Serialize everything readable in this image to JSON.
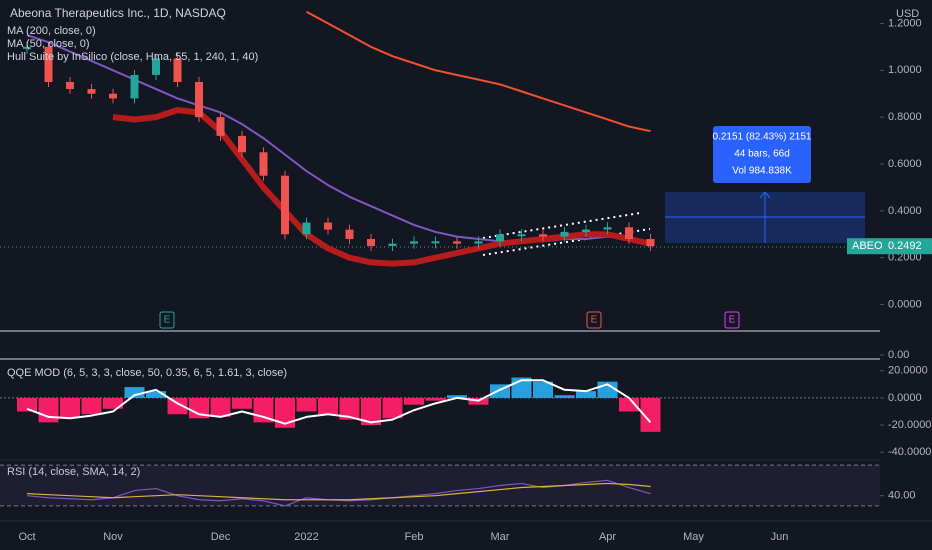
{
  "chart_data": [
    {
      "type": "candlestick",
      "title": "Abeona Therapeutics Inc., 1D, NASDAQ",
      "currency": "USD",
      "categories": [
        "Oct",
        null,
        null,
        null,
        "Nov",
        null,
        null,
        null,
        null,
        "Dec",
        null,
        null,
        null,
        "2022",
        null,
        null,
        null,
        null,
        "Feb",
        null,
        null,
        null,
        "Mar",
        null,
        null,
        null,
        null,
        "Apr",
        null,
        null,
        null,
        "May",
        null,
        null,
        null,
        "Jun",
        null,
        null,
        null,
        null
      ],
      "values": [
        1.1,
        0.95,
        0.92,
        0.9,
        0.88,
        0.98,
        1.05,
        0.95,
        0.8,
        0.72,
        0.65,
        0.55,
        0.3,
        0.35,
        0.32,
        0.28,
        0.25,
        0.26,
        0.27,
        0.27,
        0.26,
        0.27,
        0.3,
        0.3,
        0.29,
        0.31,
        0.32,
        0.33,
        0.28,
        0.2492,
        null,
        null,
        null,
        null,
        null,
        null,
        null,
        null,
        null,
        null
      ],
      "up_color": "#26a69a",
      "down_color": "#ef5350",
      "series": [
        {
          "name": "MA (200, close, 0)",
          "color": "#f0522e",
          "width": 2,
          "values": [
            null,
            null,
            null,
            null,
            null,
            null,
            null,
            null,
            null,
            null,
            null,
            null,
            null,
            1.25,
            1.2,
            1.15,
            1.1,
            1.06,
            1.03,
            1.0,
            0.98,
            0.96,
            0.94,
            0.91,
            0.88,
            0.85,
            0.82,
            0.79,
            0.76,
            0.74,
            null,
            null,
            null,
            null,
            null,
            null,
            null,
            null,
            null,
            null
          ]
        },
        {
          "name": "MA (50, close, 0)",
          "color": "#7e57c2",
          "width": 2,
          "values": [
            1.15,
            1.12,
            1.08,
            1.04,
            1.0,
            0.96,
            0.92,
            0.88,
            0.85,
            0.82,
            0.77,
            0.71,
            0.64,
            0.57,
            0.51,
            0.46,
            0.42,
            0.38,
            0.34,
            0.31,
            0.29,
            0.28,
            0.27,
            0.27,
            0.27,
            0.28,
            0.28,
            0.29,
            0.28,
            0.26,
            null,
            null,
            null,
            null,
            null,
            null,
            null,
            null,
            null,
            null
          ]
        },
        {
          "name": "Hull Suite by InSilico (close, Hma, 55, 1, 240, 1, 40)",
          "color": "#b71c1c",
          "width": 6,
          "values": [
            null,
            null,
            null,
            null,
            0.8,
            0.79,
            0.8,
            0.83,
            0.82,
            0.74,
            0.62,
            0.5,
            0.4,
            0.3,
            0.24,
            0.2,
            0.18,
            0.175,
            0.18,
            0.2,
            0.22,
            0.24,
            0.26,
            0.27,
            0.28,
            0.29,
            0.3,
            0.3,
            0.28,
            0.26,
            null,
            null,
            null,
            null,
            null,
            null,
            null,
            null,
            null,
            null
          ]
        }
      ],
      "last_label": "ABEO",
      "last_value": 0.2492,
      "ylim": [
        -0.1,
        1.3
      ],
      "yticks": [
        {
          "value": 1.2,
          "label": "1.2000"
        },
        {
          "value": 1.0,
          "label": "1.0000"
        },
        {
          "value": 0.8,
          "label": "0.8000"
        },
        {
          "value": 0.6,
          "label": "0.6000"
        },
        {
          "value": 0.4,
          "label": "0.4000"
        },
        {
          "value": 0.2,
          "label": "0.2000"
        },
        {
          "value": 0,
          "label": "0.0000"
        }
      ],
      "events": [
        "E",
        "E",
        "E"
      ],
      "tooltip": [
        "0.2151 (82.43%) 2151",
        "44 bars, 66d",
        "Vol 984.838K"
      ],
      "volume_tick": {
        "value": 0,
        "label": "0.00"
      }
    },
    {
      "type": "bar",
      "title": "QQE MOD (6, 5, 3, 3, close, 50, 0.35, 6, 5, 1.61, 3, close)",
      "values": [
        -10,
        -18,
        -15,
        -12,
        -8,
        8,
        5,
        -12,
        -15,
        -14,
        -8,
        -18,
        -22,
        -10,
        -12,
        -16,
        -20,
        -15,
        -5,
        -2,
        2,
        -5,
        10,
        15,
        12,
        2,
        5,
        12,
        -10,
        -25,
        null,
        null,
        null,
        null,
        null,
        null,
        null,
        null,
        null,
        null
      ],
      "trend": [
        -8,
        -14,
        -15,
        -13,
        -10,
        2,
        6,
        -4,
        -12,
        -14,
        -10,
        -14,
        -19,
        -14,
        -12,
        -14,
        -18,
        -16,
        -9,
        -4,
        0,
        -2,
        6,
        13,
        13,
        6,
        5,
        10,
        0,
        -18,
        null,
        null,
        null,
        null,
        null,
        null,
        null,
        null,
        null,
        null
      ],
      "pos_color": "#29a8e8",
      "neg_color": "#ff1f6a",
      "line_color": "#ffffff",
      "ylim": [
        -45,
        25
      ],
      "yticks": [
        {
          "value": 20,
          "label": "20.0000"
        },
        {
          "value": 0,
          "label": "0.0000"
        },
        {
          "value": -20,
          "label": "-20.0000"
        },
        {
          "value": -40,
          "label": "-40.0000"
        }
      ]
    },
    {
      "type": "line",
      "title": "RSI (14, close, SMA, 14, 2)",
      "values": [
        40,
        38,
        37,
        36,
        38,
        45,
        47,
        40,
        36,
        35,
        37,
        35,
        30,
        38,
        36,
        35,
        36,
        38,
        40,
        42,
        45,
        47,
        50,
        52,
        48,
        50,
        53,
        55,
        48,
        42,
        null,
        null,
        null,
        null,
        null,
        null,
        null,
        null,
        null,
        null
      ],
      "sma": [
        42,
        41,
        40,
        39,
        38,
        39,
        40,
        41,
        40,
        39,
        38,
        37,
        36,
        36,
        36,
        36,
        37,
        38,
        39,
        40,
        42,
        44,
        46,
        48,
        49,
        50,
        51,
        52,
        51,
        49,
        null,
        null,
        null,
        null,
        null,
        null,
        null,
        null,
        null,
        null
      ],
      "color": "#7e57c2",
      "sma_color": "#d8b43a",
      "levels": [
        30,
        70
      ],
      "ylim": [
        24,
        75
      ],
      "yticks": [
        {
          "value": 40,
          "label": "40.00"
        }
      ]
    }
  ]
}
